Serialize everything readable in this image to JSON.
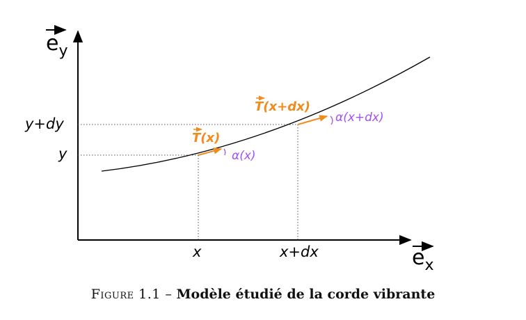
{
  "axes": {
    "y_label": "e",
    "y_sub": "y",
    "x_label": "e",
    "x_sub": "x"
  },
  "ticks": {
    "y_dy": "y+dy",
    "y": "y",
    "x": "x",
    "x_dx": "x+dx"
  },
  "vectors": {
    "t_x": {
      "letter": "T",
      "arg": "(x)"
    },
    "t_x_dx": {
      "letter": "T",
      "arg": "(x+dx)"
    }
  },
  "angles": {
    "alpha_x": "α(x)",
    "alpha_x_dx": "α(x+dx)"
  },
  "caption": {
    "prefix": "Figure 1.1 –",
    "title": "Modèle étudié de la corde vibrante"
  },
  "colors": {
    "tension": "#f08c1e",
    "angle": "#a64ff0",
    "line": "#000000"
  }
}
